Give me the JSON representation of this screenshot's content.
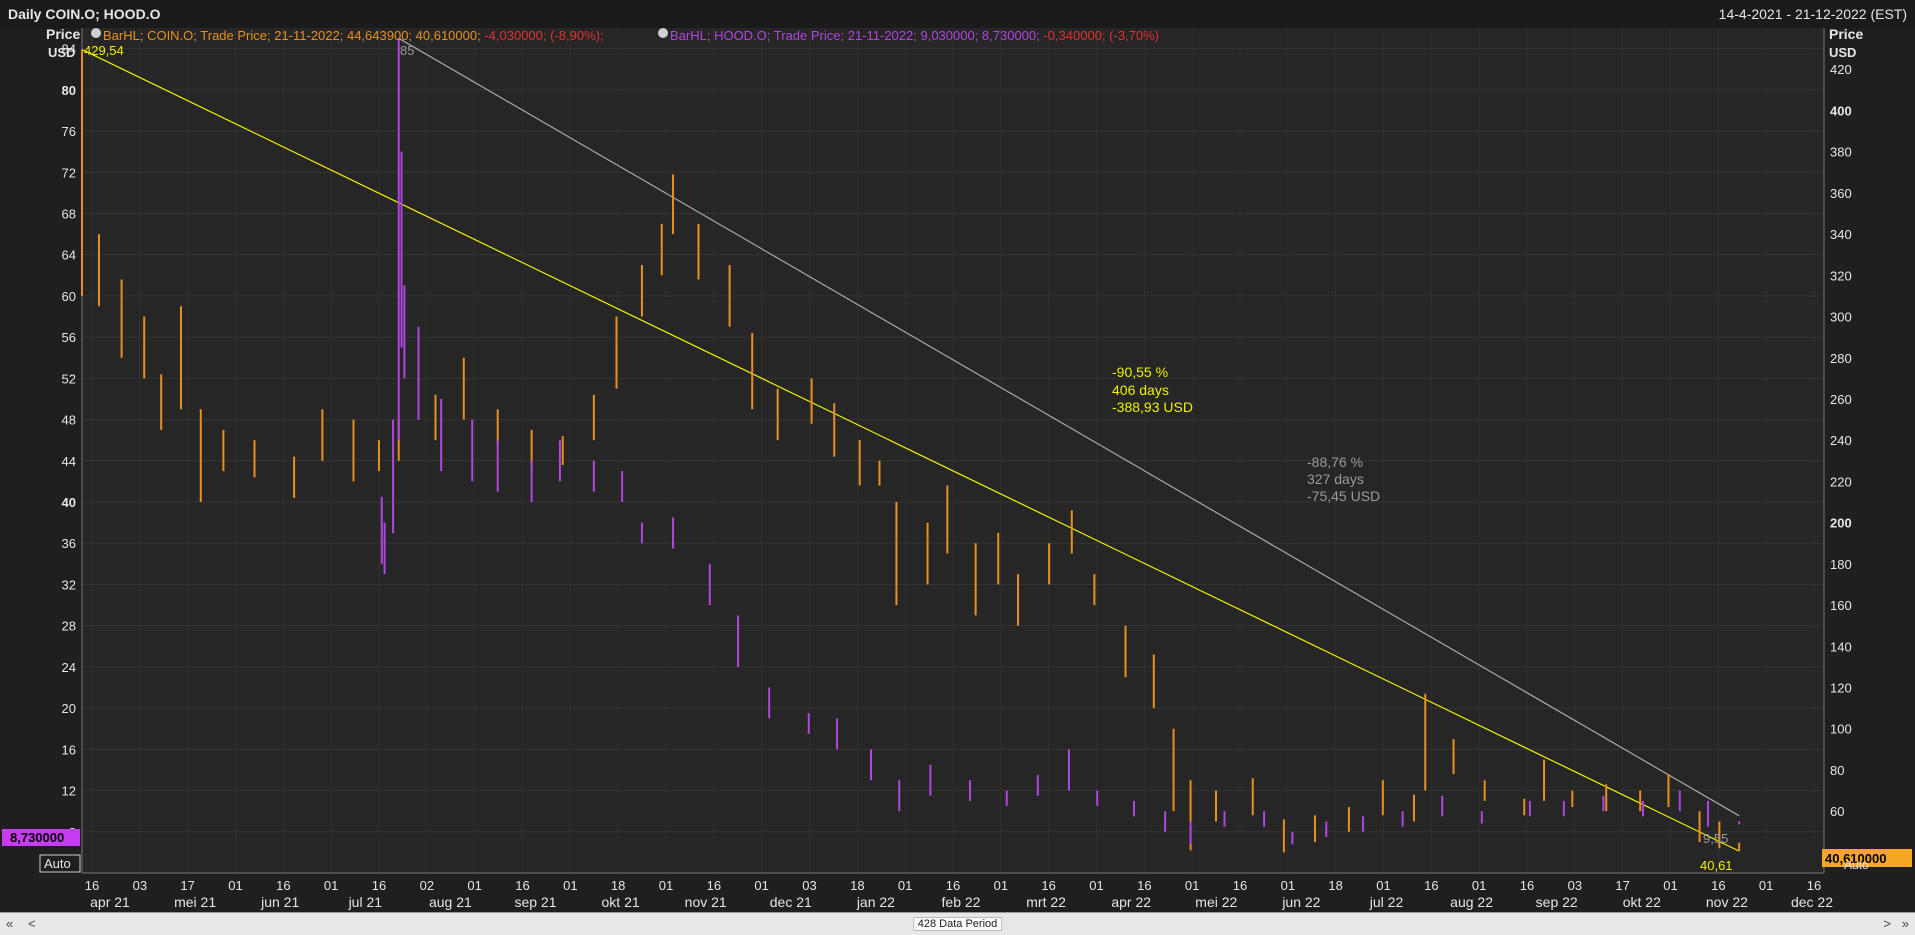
{
  "header": {
    "title": "Daily COIN.O; HOOD.O",
    "date_range": "14-4-2021 - 21-12-2022 (EST)"
  },
  "legend": {
    "coin": {
      "prefix": "BarHL; COIN.O; Trade Price; 21-11-2022; 44,643900; 40,610000; ",
      "change": "-4,030000; (-8,90%);",
      "color": "#e8901f",
      "change_color": "#e03030"
    },
    "hood": {
      "prefix": "BarHL; HOOD.O; Trade Price; 21-11-2022; 9,030000; 8,730000; ",
      "change": "-0,340000; (-3,70%)",
      "color": "#b046e0",
      "change_color": "#e03030"
    }
  },
  "axes": {
    "left_title": "Price",
    "left_unit": "USD",
    "right_title": "Price",
    "right_unit": "USD",
    "auto_label_left": "Auto",
    "auto_label_right": "Auto"
  },
  "badges": {
    "hood_last": "8,730000",
    "coin_last": "40,610000",
    "coin_start_price": "429,54",
    "hood_peak_price": "85",
    "coin_end_price": "40,61",
    "hood_end_price": "9,55"
  },
  "annotations": {
    "coin_trend": {
      "pct": "-90,55 %",
      "days": "406 days",
      "usd": "-388,93 USD",
      "color": "#f0f000"
    },
    "hood_trend": {
      "pct": "-88,76 %",
      "days": "327 days",
      "usd": "-75,45 USD",
      "color": "#9a9a9a"
    }
  },
  "bottom": {
    "period": "428 Data Period",
    "scroll_left": "«",
    "prev": "<",
    "next": ">",
    "scroll_right": "»"
  },
  "chart_data": {
    "type": "bar",
    "subtype": "high-low bars",
    "title": "Daily COIN.O; HOOD.O",
    "x_range": [
      "2021-04-14",
      "2022-12-21"
    ],
    "left_axis": {
      "label": "Price USD",
      "series": "HOOD.O",
      "ylim": [
        4,
        86
      ],
      "ticks": [
        8,
        12,
        16,
        20,
        24,
        28,
        32,
        36,
        40,
        44,
        48,
        52,
        56,
        60,
        64,
        68,
        72,
        76,
        80,
        84
      ]
    },
    "right_axis": {
      "label": "Price USD",
      "series": "COIN.O",
      "ylim": [
        30,
        440
      ],
      "ticks": [
        60,
        80,
        100,
        120,
        140,
        160,
        180,
        200,
        220,
        240,
        260,
        280,
        300,
        320,
        340,
        360,
        380,
        400,
        420
      ]
    },
    "x_day_ticks": [
      "16",
      "03",
      "17",
      "01",
      "16",
      "01",
      "16",
      "02",
      "01",
      "16",
      "01",
      "18",
      "01",
      "16",
      "01",
      "03",
      "18",
      "01",
      "16",
      "01",
      "16",
      "01",
      "16",
      "01",
      "16",
      "01",
      "18",
      "01",
      "16",
      "01",
      "16",
      "03",
      "17",
      "01",
      "16",
      "01",
      "16"
    ],
    "x_month_labels": [
      "apr 21",
      "mei 21",
      "jun 21",
      "jul 21",
      "aug 21",
      "sep 21",
      "okt 21",
      "nov 21",
      "dec 21",
      "jan 22",
      "feb 22",
      "mrt 22",
      "apr 22",
      "mei 22",
      "jun 22",
      "jul 22",
      "aug 22",
      "sep 22",
      "okt 22",
      "nov 22",
      "dec 22"
    ],
    "series": [
      {
        "name": "COIN.O",
        "axis": "right",
        "color": "#e8901f",
        "points": [
          {
            "date": "2021-04-14",
            "high": 429.54,
            "low": 310
          },
          {
            "date": "2021-04-20",
            "high": 340,
            "low": 305
          },
          {
            "date": "2021-04-28",
            "high": 318,
            "low": 280
          },
          {
            "date": "2021-05-06",
            "high": 300,
            "low": 270
          },
          {
            "date": "2021-05-12",
            "high": 272,
            "low": 245
          },
          {
            "date": "2021-05-19",
            "high": 305,
            "low": 255
          },
          {
            "date": "2021-05-26",
            "high": 255,
            "low": 210
          },
          {
            "date": "2021-06-03",
            "high": 245,
            "low": 225
          },
          {
            "date": "2021-06-14",
            "high": 240,
            "low": 222
          },
          {
            "date": "2021-06-28",
            "high": 232,
            "low": 212
          },
          {
            "date": "2021-07-08",
            "high": 255,
            "low": 230
          },
          {
            "date": "2021-07-19",
            "high": 250,
            "low": 220
          },
          {
            "date": "2021-07-28",
            "high": 240,
            "low": 225
          },
          {
            "date": "2021-08-04",
            "high": 250,
            "low": 230
          },
          {
            "date": "2021-08-17",
            "high": 262,
            "low": 240
          },
          {
            "date": "2021-08-27",
            "high": 280,
            "low": 250
          },
          {
            "date": "2021-09-08",
            "high": 255,
            "low": 238
          },
          {
            "date": "2021-09-20",
            "high": 245,
            "low": 225
          },
          {
            "date": "2021-10-01",
            "high": 242,
            "low": 228
          },
          {
            "date": "2021-10-12",
            "high": 262,
            "low": 240
          },
          {
            "date": "2021-10-20",
            "high": 300,
            "low": 265
          },
          {
            "date": "2021-10-29",
            "high": 325,
            "low": 300
          },
          {
            "date": "2021-11-05",
            "high": 345,
            "low": 320
          },
          {
            "date": "2021-11-09",
            "high": 368.9,
            "low": 340
          },
          {
            "date": "2021-11-18",
            "high": 345,
            "low": 318
          },
          {
            "date": "2021-11-29",
            "high": 325,
            "low": 295
          },
          {
            "date": "2021-12-07",
            "high": 292,
            "low": 255
          },
          {
            "date": "2021-12-16",
            "high": 265,
            "low": 240
          },
          {
            "date": "2021-12-28",
            "high": 270,
            "low": 248
          },
          {
            "date": "2022-01-05",
            "high": 258,
            "low": 232
          },
          {
            "date": "2022-01-14",
            "high": 240,
            "low": 218
          },
          {
            "date": "2022-01-21",
            "high": 230,
            "low": 218
          },
          {
            "date": "2022-01-27",
            "high": 210,
            "low": 160
          },
          {
            "date": "2022-02-07",
            "high": 200,
            "low": 170
          },
          {
            "date": "2022-02-14",
            "high": 218,
            "low": 185
          },
          {
            "date": "2022-02-24",
            "high": 190,
            "low": 155
          },
          {
            "date": "2022-03-04",
            "high": 195,
            "low": 170
          },
          {
            "date": "2022-03-11",
            "high": 175,
            "low": 150
          },
          {
            "date": "2022-03-22",
            "high": 190,
            "low": 170
          },
          {
            "date": "2022-03-30",
            "high": 206,
            "low": 185
          },
          {
            "date": "2022-04-07",
            "high": 175,
            "low": 160
          },
          {
            "date": "2022-04-18",
            "high": 150,
            "low": 125
          },
          {
            "date": "2022-04-28",
            "high": 136,
            "low": 110
          },
          {
            "date": "2022-05-05",
            "high": 100,
            "low": 60
          },
          {
            "date": "2022-05-11",
            "high": 75,
            "low": 41
          },
          {
            "date": "2022-05-20",
            "high": 70,
            "low": 55
          },
          {
            "date": "2022-06-02",
            "high": 76,
            "low": 58
          },
          {
            "date": "2022-06-13",
            "high": 56,
            "low": 40
          },
          {
            "date": "2022-06-24",
            "high": 58,
            "low": 45
          },
          {
            "date": "2022-07-06",
            "high": 62,
            "low": 50
          },
          {
            "date": "2022-07-18",
            "high": 75,
            "low": 58
          },
          {
            "date": "2022-07-29",
            "high": 68,
            "low": 55
          },
          {
            "date": "2022-08-02",
            "high": 117,
            "low": 70
          },
          {
            "date": "2022-08-12",
            "high": 95,
            "low": 78
          },
          {
            "date": "2022-08-23",
            "high": 75,
            "low": 65
          },
          {
            "date": "2022-09-06",
            "high": 66,
            "low": 58
          },
          {
            "date": "2022-09-13",
            "high": 85,
            "low": 65
          },
          {
            "date": "2022-09-23",
            "high": 70,
            "low": 62
          },
          {
            "date": "2022-10-05",
            "high": 73,
            "low": 60
          },
          {
            "date": "2022-10-17",
            "high": 70,
            "low": 60
          },
          {
            "date": "2022-10-27",
            "high": 78,
            "low": 62
          },
          {
            "date": "2022-11-07",
            "high": 60,
            "low": 45
          },
          {
            "date": "2022-11-14",
            "high": 55,
            "low": 42
          },
          {
            "date": "2022-11-21",
            "high": 44.64,
            "low": 40.61
          }
        ]
      },
      {
        "name": "HOOD.O",
        "axis": "left",
        "color": "#b046e0",
        "points": [
          {
            "date": "2021-07-29",
            "high": 40.5,
            "low": 34
          },
          {
            "date": "2021-07-30",
            "high": 38,
            "low": 33
          },
          {
            "date": "2021-08-02",
            "high": 48,
            "low": 37
          },
          {
            "date": "2021-08-04",
            "high": 85,
            "low": 46
          },
          {
            "date": "2021-08-05",
            "high": 74,
            "low": 55
          },
          {
            "date": "2021-08-06",
            "high": 61,
            "low": 52
          },
          {
            "date": "2021-08-11",
            "high": 57,
            "low": 48
          },
          {
            "date": "2021-08-19",
            "high": 50,
            "low": 43
          },
          {
            "date": "2021-08-30",
            "high": 48,
            "low": 42
          },
          {
            "date": "2021-09-08",
            "high": 46,
            "low": 41
          },
          {
            "date": "2021-09-20",
            "high": 44,
            "low": 40
          },
          {
            "date": "2021-09-30",
            "high": 46,
            "low": 42
          },
          {
            "date": "2021-10-12",
            "high": 44,
            "low": 41
          },
          {
            "date": "2021-10-22",
            "high": 43,
            "low": 40
          },
          {
            "date": "2021-10-29",
            "high": 38,
            "low": 36
          },
          {
            "date": "2021-11-09",
            "high": 38.5,
            "low": 35.5
          },
          {
            "date": "2021-11-22",
            "high": 34,
            "low": 30
          },
          {
            "date": "2021-12-02",
            "high": 29,
            "low": 24
          },
          {
            "date": "2021-12-13",
            "high": 22,
            "low": 19
          },
          {
            "date": "2021-12-27",
            "high": 19.5,
            "low": 17.5
          },
          {
            "date": "2022-01-06",
            "high": 19,
            "low": 16
          },
          {
            "date": "2022-01-18",
            "high": 16,
            "low": 13
          },
          {
            "date": "2022-01-28",
            "high": 13,
            "low": 10
          },
          {
            "date": "2022-02-08",
            "high": 14.5,
            "low": 11.5
          },
          {
            "date": "2022-02-22",
            "high": 13,
            "low": 11
          },
          {
            "date": "2022-03-07",
            "high": 12,
            "low": 10.5
          },
          {
            "date": "2022-03-18",
            "high": 13.5,
            "low": 11.5
          },
          {
            "date": "2022-03-29",
            "high": 16,
            "low": 12
          },
          {
            "date": "2022-04-08",
            "high": 12,
            "low": 10.5
          },
          {
            "date": "2022-04-21",
            "high": 11,
            "low": 9.5
          },
          {
            "date": "2022-05-02",
            "high": 10,
            "low": 8
          },
          {
            "date": "2022-05-11",
            "high": 9,
            "low": 6.8
          },
          {
            "date": "2022-05-23",
            "high": 10,
            "low": 8.5
          },
          {
            "date": "2022-06-06",
            "high": 10,
            "low": 8.5
          },
          {
            "date": "2022-06-16",
            "high": 8,
            "low": 6.8
          },
          {
            "date": "2022-06-28",
            "high": 9,
            "low": 7.5
          },
          {
            "date": "2022-07-11",
            "high": 9.5,
            "low": 8
          },
          {
            "date": "2022-07-25",
            "high": 10,
            "low": 8.5
          },
          {
            "date": "2022-08-08",
            "high": 11.5,
            "low": 9.5
          },
          {
            "date": "2022-08-22",
            "high": 10,
            "low": 8.8
          },
          {
            "date": "2022-09-08",
            "high": 11,
            "low": 9.5
          },
          {
            "date": "2022-09-20",
            "high": 11,
            "low": 9.5
          },
          {
            "date": "2022-10-04",
            "high": 11.5,
            "low": 10
          },
          {
            "date": "2022-10-18",
            "high": 11,
            "low": 9.5
          },
          {
            "date": "2022-10-31",
            "high": 12,
            "low": 10
          },
          {
            "date": "2022-11-10",
            "high": 11,
            "low": 8.5
          },
          {
            "date": "2022-11-21",
            "high": 9.03,
            "low": 8.73
          }
        ]
      }
    ],
    "trendlines": [
      {
        "name": "COIN.O trend",
        "from": {
          "date": "2021-04-14",
          "value": 429.54
        },
        "to": {
          "date": "2022-11-21",
          "value": 40.61
        },
        "color": "#f0f000"
      },
      {
        "name": "HOOD.O trend",
        "from": {
          "date": "2021-08-04",
          "value": 85
        },
        "to": {
          "date": "2022-11-21",
          "value": 9.55
        },
        "color": "#a8a8a8"
      }
    ]
  }
}
